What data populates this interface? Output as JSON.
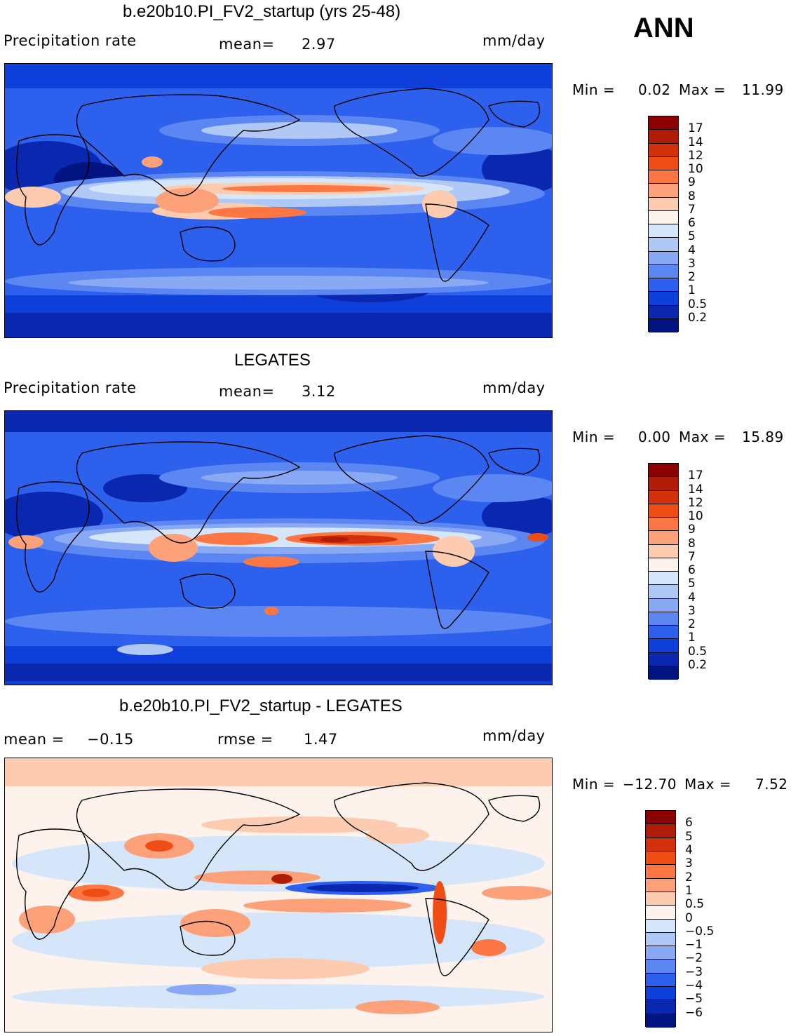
{
  "season": "ANN",
  "panels": [
    {
      "id": "model",
      "title": "b.e20b10.PI_FV2_startup (yrs 25-48)",
      "left_label": "Precipitation  rate",
      "center_label": "mean=",
      "center_value": "2.97",
      "units": "mm/day",
      "minmax": {
        "min_label": "Min  =",
        "min_value": "0.02",
        "max_label": "Max  =",
        "max_value": "11.99"
      },
      "colorbar": {
        "levels": [
          "17",
          "14",
          "12",
          "10",
          "9",
          "8",
          "7",
          "6",
          "5",
          "4",
          "3",
          "2",
          "1",
          "0.5",
          "0.2"
        ],
        "colors": [
          "#8b0000",
          "#b01c05",
          "#d3300c",
          "#f04c16",
          "#fc7744",
          "#fda17a",
          "#fdccb0",
          "#fdf3ec",
          "#d6e6fa",
          "#b0c8f6",
          "#89a9f4",
          "#5c86f1",
          "#2e60ee",
          "#0f3fdb",
          "#0a27b0",
          "#00137f"
        ]
      },
      "map_palette": [
        "#00137f",
        "#0a27b0",
        "#0f3fdb",
        "#2e60ee",
        "#5c86f1",
        "#89a9f4",
        "#b0c8f6",
        "#d6e6fa",
        "#fdf3ec",
        "#fdccb0",
        "#fda17a",
        "#fc7744",
        "#f04c16",
        "#d3300c",
        "#b01c05",
        "#8b0000"
      ]
    },
    {
      "id": "obs",
      "title": "LEGATES",
      "left_label": "Precipitation  rate",
      "center_label": "mean=",
      "center_value": "3.12",
      "units": "mm/day",
      "minmax": {
        "min_label": "Min  =",
        "min_value": "0.00",
        "max_label": "Max  =",
        "max_value": "15.89"
      },
      "colorbar": {
        "levels": [
          "17",
          "14",
          "12",
          "10",
          "9",
          "8",
          "7",
          "6",
          "5",
          "4",
          "3",
          "2",
          "1",
          "0.5",
          "0.2"
        ],
        "colors": [
          "#8b0000",
          "#b01c05",
          "#d3300c",
          "#f04c16",
          "#fc7744",
          "#fda17a",
          "#fdccb0",
          "#fdf3ec",
          "#d6e6fa",
          "#b0c8f6",
          "#89a9f4",
          "#5c86f1",
          "#2e60ee",
          "#0f3fdb",
          "#0a27b0",
          "#00137f"
        ]
      }
    },
    {
      "id": "diff",
      "title": "b.e20b10.PI_FV2_startup - LEGATES",
      "left_label": "mean  =",
      "left_value": "−0.15",
      "center_label": "rmse  =",
      "center_value": "1.47",
      "units": "mm/day",
      "minmax": {
        "min_label": "Min  =",
        "min_value": "−12.70",
        "max_label": "Max  =",
        "max_value": "7.52"
      },
      "colorbar": {
        "levels": [
          "6",
          "5",
          "4",
          "3",
          "2",
          "1",
          "0.5",
          "0",
          "−0.5",
          "−1",
          "−2",
          "−3",
          "−4",
          "−5",
          "−6"
        ],
        "colors": [
          "#8b0000",
          "#b01c05",
          "#d3300c",
          "#f04c16",
          "#fc7744",
          "#fda17a",
          "#fdccb0",
          "#fdf3ec",
          "#d6e6fa",
          "#b0c8f6",
          "#89a9f4",
          "#5c86f1",
          "#2e60ee",
          "#0f3fdb",
          "#0a27b0",
          "#00137f"
        ]
      }
    }
  ]
}
